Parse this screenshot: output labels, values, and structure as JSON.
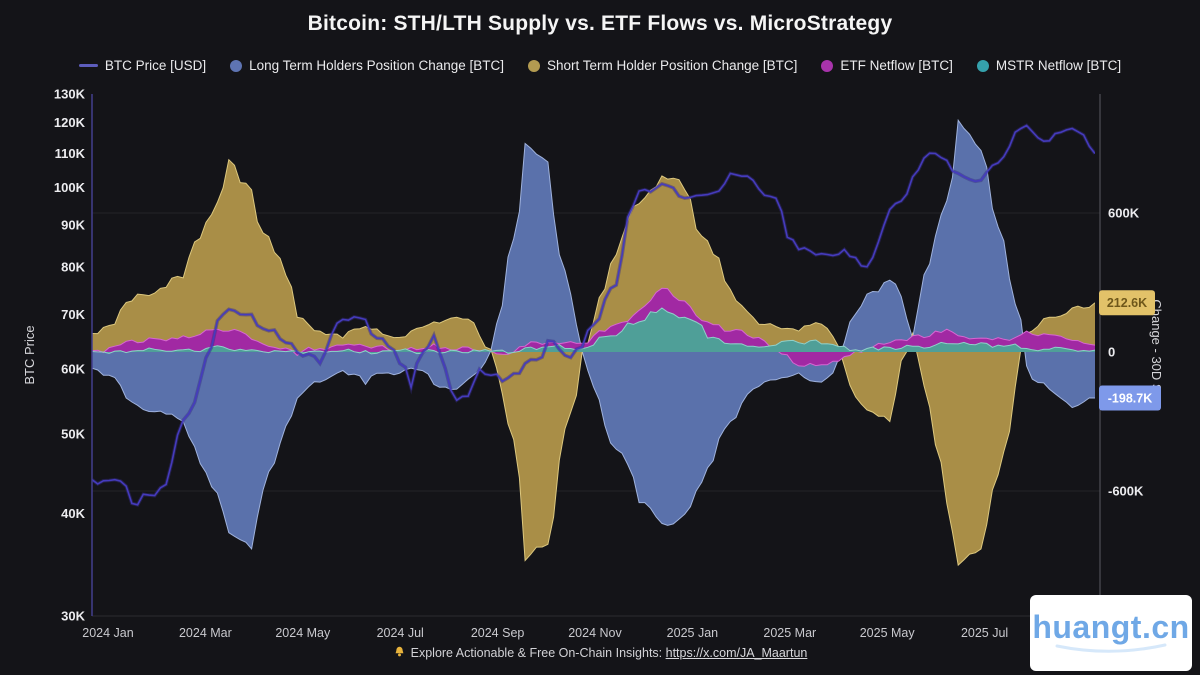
{
  "title": "Bitcoin: STH/LTH Supply vs. ETF Flows vs. MicroStrategy",
  "legend": {
    "items": [
      {
        "id": "btc-price",
        "label": "BTC Price [USD]",
        "marker": "line",
        "color": "#5d5dbc"
      },
      {
        "id": "lth",
        "label": "Long Term Holders Position Change [BTC]",
        "marker": "circle",
        "color": "#5e74b2"
      },
      {
        "id": "sth",
        "label": "Short Term Holder Position Change [BTC]",
        "marker": "circle",
        "color": "#b39b51"
      },
      {
        "id": "etf",
        "label": "ETF Netflow [BTC]",
        "marker": "circle",
        "color": "#a833ab"
      },
      {
        "id": "mstr",
        "label": "MSTR Netflow [BTC]",
        "marker": "circle",
        "color": "#35a1ac"
      }
    ]
  },
  "chart_data": {
    "type": "area",
    "title": "Bitcoin: STH/LTH Supply vs. ETF Flows vs. MicroStrategy",
    "left_axis": {
      "label": "BTC Price",
      "scale": "log",
      "unit": "USD",
      "ticks_k": [
        130,
        120,
        110,
        100,
        90,
        80,
        70,
        60,
        50,
        40,
        30
      ],
      "range_k": [
        30,
        130
      ]
    },
    "right_axis": {
      "label": "Change - 30D Sum",
      "scale": "linear",
      "unit": "BTC",
      "ticks_k": [
        600,
        0,
        -600
      ],
      "gridlines_k": [
        600,
        -600
      ]
    },
    "x_tick_labels": [
      "2024 Jan",
      "2024 Mar",
      "2024 May",
      "2024 Jul",
      "2024 Sep",
      "2024 Nov",
      "2025 Jan",
      "2025 Mar",
      "2025 May",
      "2025 Jul"
    ],
    "badges": [
      {
        "series": "sth",
        "text": "212.6K",
        "value_k": 212.6,
        "bg": "#e2c269",
        "fg": "#6e571a"
      },
      {
        "series": "lth",
        "text": "-198.7K",
        "value_k": -198.7,
        "bg": "#7e99ea",
        "fg": "#ffffff"
      }
    ],
    "dates": [
      "2023-12-22",
      "2024-01-05",
      "2024-01-19",
      "2024-02-02",
      "2024-02-16",
      "2024-03-01",
      "2024-03-15",
      "2024-03-29",
      "2024-04-12",
      "2024-04-26",
      "2024-05-10",
      "2024-05-24",
      "2024-06-07",
      "2024-06-21",
      "2024-07-05",
      "2024-07-19",
      "2024-08-02",
      "2024-08-16",
      "2024-08-30",
      "2024-09-13",
      "2024-09-27",
      "2024-10-11",
      "2024-10-25",
      "2024-11-08",
      "2024-11-22",
      "2024-12-06",
      "2024-12-20",
      "2025-01-03",
      "2025-01-17",
      "2025-01-31",
      "2025-02-14",
      "2025-02-28",
      "2025-03-14",
      "2025-03-28",
      "2025-04-11",
      "2025-04-25",
      "2025-05-09",
      "2025-05-23",
      "2025-06-06",
      "2025-06-20",
      "2025-07-04",
      "2025-07-18",
      "2025-08-01",
      "2025-08-15",
      "2025-08-29"
    ],
    "series": [
      {
        "id": "lth",
        "name": "Long Term Holders Position Change [BTC]",
        "type": "area",
        "axis": "right",
        "unit": "K BTC",
        "fill": "#5a71ab",
        "stroke": "#9fb2dd",
        "values": [
          -70,
          -110,
          -230,
          -255,
          -300,
          -520,
          -780,
          -850,
          -480,
          -200,
          -130,
          -80,
          -140,
          -90,
          -70,
          -140,
          -160,
          -80,
          200,
          900,
          820,
          250,
          -150,
          -420,
          -650,
          -740,
          -700,
          -500,
          -300,
          -160,
          -120,
          -90,
          -130,
          40,
          250,
          310,
          60,
          500,
          1000,
          870,
          480,
          -60,
          -160,
          -240,
          -198.7
        ]
      },
      {
        "id": "sth",
        "name": "Short Term Holder Position Change [BTC]",
        "type": "area",
        "axis": "right",
        "unit": "K BTC",
        "fill": "#a98e47",
        "stroke": "#ddc87e",
        "values": [
          80,
          120,
          250,
          275,
          320,
          560,
          830,
          700,
          430,
          150,
          90,
          60,
          110,
          70,
          90,
          130,
          150,
          70,
          -180,
          -900,
          -830,
          -260,
          130,
          420,
          640,
          760,
          700,
          480,
          270,
          150,
          110,
          90,
          120,
          -60,
          -250,
          -300,
          80,
          -400,
          -920,
          -850,
          -430,
          80,
          150,
          190,
          212.6
        ]
      },
      {
        "id": "etf",
        "name": "ETF Netflow [BTC]",
        "type": "area",
        "axis": "right",
        "unit": "K BTC",
        "fill": "#a129a3",
        "stroke": "#d667d2",
        "values": [
          5,
          25,
          40,
          55,
          70,
          95,
          90,
          55,
          20,
          -15,
          15,
          30,
          25,
          10,
          20,
          35,
          10,
          5,
          -10,
          25,
          40,
          45,
          70,
          120,
          180,
          275,
          220,
          130,
          90,
          60,
          10,
          -60,
          -55,
          -20,
          10,
          40,
          70,
          90,
          70,
          60,
          55,
          90,
          75,
          50,
          30
        ]
      },
      {
        "id": "mstr",
        "name": "MSTR Netflow [BTC]",
        "type": "area",
        "axis": "right",
        "unit": "K BTC",
        "fill": "#4f9f98",
        "stroke": "#8fd0c9",
        "values": [
          2,
          4,
          6,
          8,
          10,
          15,
          12,
          10,
          6,
          4,
          4,
          5,
          6,
          5,
          4,
          6,
          5,
          4,
          8,
          18,
          22,
          15,
          30,
          70,
          130,
          190,
          150,
          60,
          35,
          25,
          30,
          40,
          35,
          25,
          15,
          20,
          25,
          30,
          35,
          40,
          25,
          15,
          12,
          10,
          8
        ]
      },
      {
        "id": "btc-price",
        "name": "BTC Price [USD]",
        "type": "line",
        "axis": "left",
        "unit": "K USD",
        "color": "#453bbd",
        "glow": "#352d86",
        "values": [
          44,
          44,
          41,
          43,
          52,
          62,
          71,
          70,
          67,
          63,
          61,
          69,
          69,
          64,
          57,
          66,
          55,
          60,
          58,
          61,
          65,
          62,
          68,
          76,
          99,
          101,
          97,
          98,
          104,
          102,
          97,
          84,
          83,
          84,
          80,
          94,
          103,
          110,
          104,
          102,
          109,
          119,
          114,
          118,
          110
        ]
      }
    ]
  },
  "footer": {
    "bell_color": "#e8b33c",
    "text": "Explore Actionable & Free On-Chain Insights: ",
    "link": "https://x.com/JA_Maartun"
  },
  "watermark": {
    "text": "huangt.cn",
    "swoosh_color": "#d6e8fa"
  },
  "colors": {
    "background": "#141418",
    "grid": "#232328",
    "axis_left": "#433e8e",
    "axis_right": "#5a5a62",
    "tick_label": "#ececef",
    "x_label": "#c9c9ce",
    "axis_title": "#d6d6da",
    "baseline": "#2b2b30"
  }
}
